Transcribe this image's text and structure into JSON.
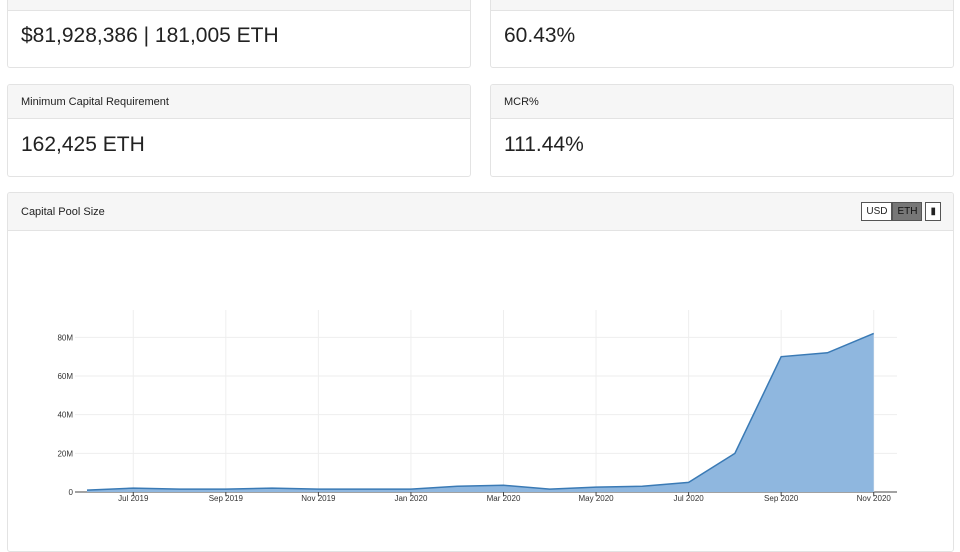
{
  "cards": [
    {
      "value": "$81,928,386 | 181,005 ETH"
    },
    {
      "value": "60.43%"
    },
    {
      "title": "Minimum Capital Requirement",
      "value": "162,425 ETH"
    },
    {
      "title": "MCR%",
      "value": "111.44%"
    }
  ],
  "chart_card": {
    "title": "Capital Pool Size",
    "buttons": [
      "USD",
      "ETH"
    ]
  },
  "chart_data": {
    "type": "area",
    "color": "#3a7ab5",
    "fill": "#8fb7df",
    "grid": true,
    "x": [
      "2019-06",
      "2019-07",
      "2019-08",
      "2019-09",
      "2019-10",
      "2019-11",
      "2019-12",
      "2020-01",
      "2020-02",
      "2020-03",
      "2020-04",
      "2020-05",
      "2020-06",
      "2020-07",
      "2020-08",
      "2020-09",
      "2020-10",
      "2020-11"
    ],
    "values": [
      1000000,
      2000000,
      1500000,
      1500000,
      2000000,
      1500000,
      1500000,
      1500000,
      3000000,
      3500000,
      1500000,
      2500000,
      3000000,
      5000000,
      20000000,
      70000000,
      72000000,
      82000000
    ],
    "xlim": [
      "2019-06",
      "2020-12"
    ],
    "xticks": [
      {
        "value": "2019-07",
        "label": "Jul 2019"
      },
      {
        "value": "2019-09",
        "label": "Sep 2019"
      },
      {
        "value": "2019-11",
        "label": "Nov 2019"
      },
      {
        "value": "2020-01",
        "label": "Jan 2020"
      },
      {
        "value": "2020-03",
        "label": "Mar 2020"
      },
      {
        "value": "2020-05",
        "label": "May 2020"
      },
      {
        "value": "2020-07",
        "label": "Jul 2020"
      },
      {
        "value": "2020-09",
        "label": "Sep 2020"
      },
      {
        "value": "2020-11",
        "label": "Nov 2020"
      }
    ],
    "ylim": [
      0,
      90000000
    ],
    "yticks": [
      0,
      {
        "value": 20000000,
        "label": "20M"
      },
      {
        "value": 40000000,
        "label": "40M"
      },
      {
        "value": 60000000,
        "label": "60M"
      },
      {
        "value": 80000000,
        "label": "80M"
      }
    ]
  }
}
